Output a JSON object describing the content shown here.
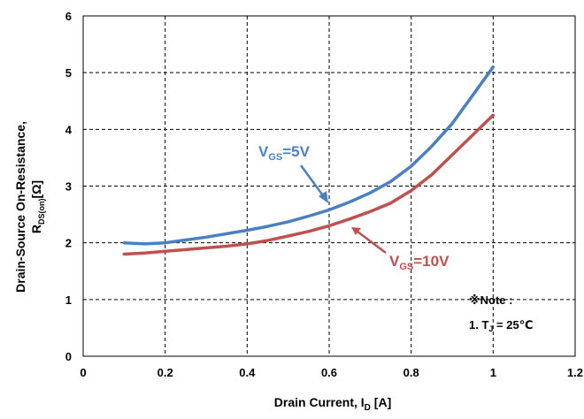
{
  "chart_data": {
    "type": "line",
    "xlabel": "Drain Current, I",
    "xlabel_sub": "D",
    "xlabel_unit": "[A]",
    "ylabel_line1": "Drain-Source On-Resistance,",
    "ylabel_line2_main": "R",
    "ylabel_line2_sub": "DS(on)",
    "ylabel_line2_unit": "[Ω]",
    "xlim": [
      0,
      1.2
    ],
    "ylim": [
      0,
      6
    ],
    "x_ticks": [
      "0",
      "0.2",
      "0.4",
      "0.6",
      "0.8",
      "1",
      "1.2"
    ],
    "y_ticks": [
      "0",
      "1",
      "2",
      "3",
      "4",
      "5",
      "6"
    ],
    "grid": true,
    "series": [
      {
        "name_main": "V",
        "name_sub": "GS",
        "name_rest": "=5V",
        "color": "#4a7fc1",
        "x": [
          0.1,
          0.15,
          0.2,
          0.25,
          0.3,
          0.35,
          0.4,
          0.45,
          0.5,
          0.55,
          0.6,
          0.65,
          0.7,
          0.75,
          0.8,
          0.85,
          0.9,
          0.95,
          1.0
        ],
        "y": [
          2.0,
          1.98,
          2.0,
          2.05,
          2.1,
          2.16,
          2.22,
          2.29,
          2.37,
          2.47,
          2.58,
          2.72,
          2.88,
          3.08,
          3.35,
          3.7,
          4.1,
          4.6,
          5.1
        ]
      },
      {
        "name_main": "V",
        "name_sub": "GS",
        "name_rest": "=10V",
        "color": "#c0504d",
        "x": [
          0.1,
          0.15,
          0.2,
          0.25,
          0.3,
          0.35,
          0.4,
          0.45,
          0.5,
          0.55,
          0.6,
          0.65,
          0.7,
          0.75,
          0.8,
          0.85,
          0.9,
          0.95,
          1.0
        ],
        "y": [
          1.8,
          1.82,
          1.85,
          1.88,
          1.91,
          1.94,
          1.98,
          2.04,
          2.12,
          2.2,
          2.3,
          2.42,
          2.55,
          2.7,
          2.92,
          3.2,
          3.55,
          3.9,
          4.25
        ]
      }
    ],
    "annotations": {
      "note_title": "※Note :",
      "note_line_prefix": "1. T",
      "note_line_sub": "J",
      "note_line_suffix": " = 25℃"
    }
  }
}
